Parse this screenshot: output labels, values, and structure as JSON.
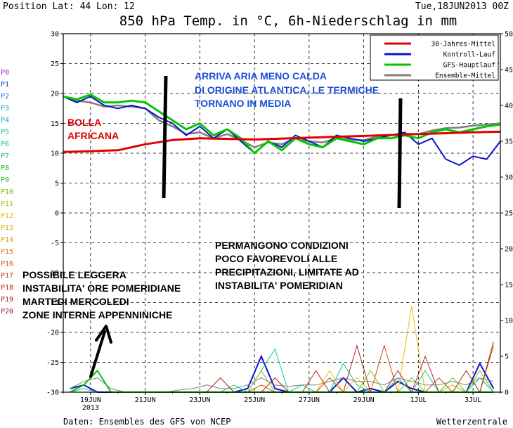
{
  "header": {
    "position": "Position  Lat: 44 Lon: 12",
    "date": "Tue,18JUN2013 00Z",
    "title": "850 hPa Temp. in °C, 6h-Niederschlag in mm"
  },
  "footer": {
    "source": "Daten: Ensembles des GFS von NCEP",
    "brand": "Wetterzentrale"
  },
  "chart_data": {
    "type": "line",
    "title": "850 hPa Temp. in °C, 6h-Niederschlag in mm",
    "x_start": "2013-06-18",
    "x_end": "2013-07-04",
    "x_tick_labels": [
      "19JUN",
      "21JUN",
      "23JUN",
      "25JUN",
      "27JUN",
      "29JUN",
      "1JUL",
      "3JUL"
    ],
    "x_tick_dates": [
      "2013-06-19",
      "2013-06-21",
      "2013-06-23",
      "2013-06-25",
      "2013-06-27",
      "2013-06-29",
      "2013-07-01",
      "2013-07-03"
    ],
    "x_sublabel": "2013",
    "y_left_ticks": [
      30,
      25,
      20,
      15,
      10,
      5,
      0,
      -5,
      -10,
      -15,
      -20,
      -25,
      -30
    ],
    "y_left_lim": [
      -30,
      30
    ],
    "y_right_ticks": [
      50,
      45,
      40,
      35,
      30,
      25,
      20,
      15,
      10,
      5,
      0
    ],
    "y_right_lim": [
      0,
      50
    ],
    "legend": {
      "position": "top-right",
      "entries": [
        {
          "label": "30-Jahres-Mittel",
          "color": "#e00000"
        },
        {
          "label": "Kontroll-Lauf",
          "color": "#1010d0"
        },
        {
          "label": "GFS-Hauptlauf",
          "color": "#00c800"
        },
        {
          "label": "Ensemble-Mittel",
          "color": "#808080"
        }
      ]
    },
    "members": {
      "labels": [
        "P0",
        "P1",
        "P2",
        "P3",
        "P4",
        "P5",
        "P6",
        "P7",
        "P8",
        "P9",
        "P10",
        "P11",
        "P12",
        "P13",
        "P14",
        "P15",
        "P16",
        "P17",
        "P18",
        "P19",
        "P20"
      ],
      "colors": [
        "#9018c8",
        "#1030d8",
        "#1070e0",
        "#10a0d8",
        "#10b0c0",
        "#10c0b0",
        "#10c890",
        "#10c060",
        "#10c020",
        "#30c010",
        "#70c810",
        "#b0c810",
        "#e0c010",
        "#e8a810",
        "#e89010",
        "#e07010",
        "#d05010",
        "#c83010",
        "#b82010",
        "#a81818",
        "#981820"
      ]
    },
    "series": [
      {
        "name": "30-Jahres-Mittel",
        "color": "#e00000",
        "x_days": [
          0,
          2,
          3,
          4,
          5,
          7,
          9,
          11,
          13,
          15,
          16
        ],
        "values": [
          10.2,
          10.5,
          11.5,
          12.2,
          12.5,
          12.3,
          12.6,
          12.9,
          13.2,
          13.5,
          13.6
        ]
      },
      {
        "name": "Kontroll-Lauf",
        "color": "#1010d0",
        "x_days": [
          0,
          0.5,
          1,
          1.5,
          2,
          2.5,
          3,
          3.5,
          4,
          4.5,
          5,
          5.5,
          6,
          6.5,
          7,
          7.5,
          8,
          8.5,
          9,
          9.5,
          10,
          10.5,
          11,
          11.5,
          12,
          12.5,
          13,
          13.5,
          14,
          14.5,
          15,
          15.5,
          16
        ],
        "values": [
          19.5,
          18.5,
          19.5,
          18,
          17.5,
          18,
          17.5,
          16,
          15,
          13,
          14.5,
          12.5,
          14,
          12,
          10,
          12,
          11,
          13,
          12,
          11,
          13,
          12.5,
          12,
          12.5,
          13,
          13.5,
          11.5,
          12.5,
          9,
          8,
          9.5,
          9,
          12
        ]
      },
      {
        "name": "GFS-Hauptlauf",
        "color": "#00c800",
        "x_days": [
          0,
          0.5,
          1,
          1.5,
          2,
          2.5,
          3,
          3.5,
          4,
          4.5,
          5,
          5.5,
          6,
          6.5,
          7,
          7.5,
          8,
          8.5,
          9,
          9.5,
          10,
          10.5,
          11,
          11.5,
          12,
          12.5,
          13,
          13.5,
          14,
          14.5,
          15,
          15.5,
          16
        ],
        "values": [
          19.5,
          19,
          19.8,
          18.5,
          18.5,
          18.8,
          18.5,
          17,
          15.5,
          14,
          15,
          13,
          14,
          12.5,
          10,
          12,
          10.5,
          12.5,
          11.5,
          11,
          12.5,
          12,
          11.5,
          12.5,
          12.5,
          13,
          12.5,
          13.5,
          14,
          13.5,
          14,
          14.5,
          14.8
        ]
      },
      {
        "name": "Ensemble-Mittel",
        "color": "#808080",
        "x_days": [
          0,
          0.5,
          1,
          1.5,
          2,
          2.5,
          3,
          3.5,
          4,
          4.5,
          5,
          5.5,
          6,
          6.5,
          7,
          7.5,
          8,
          8.5,
          9,
          9.5,
          10,
          10.5,
          11,
          11.5,
          12,
          12.5,
          13,
          13.5,
          14,
          14.5,
          15,
          15.5,
          16
        ],
        "values": [
          19.5,
          18.8,
          18.5,
          17.8,
          18,
          17.8,
          17.5,
          15.5,
          14.5,
          13.2,
          13.5,
          12.5,
          13.2,
          12.2,
          11,
          11.8,
          11.5,
          12.5,
          12,
          11.8,
          12.5,
          12.3,
          12.2,
          12.8,
          13,
          13.3,
          13.2,
          13.8,
          14.2,
          14.3,
          14.6,
          14.8,
          15
        ]
      }
    ],
    "precip_days": [
      0.25,
      0.75,
      1.25,
      1.75,
      2.25,
      2.75,
      3.25,
      3.75,
      4.25,
      4.75,
      5.25,
      5.75,
      6.25,
      6.75,
      7.25,
      7.75,
      8.25,
      8.75,
      9.25,
      9.75,
      10.25,
      10.75,
      11.25,
      11.75,
      12.25,
      12.75,
      13.25,
      13.75,
      14.25,
      14.75,
      15.25,
      15.75
    ],
    "precip_series": [
      {
        "name": "Kontroll-Lauf",
        "color": "#1010d0",
        "values": [
          0.5,
          1,
          0,
          0,
          0,
          0,
          0,
          0,
          0,
          0,
          0,
          0,
          0,
          0.5,
          5,
          0.5,
          0,
          0,
          0,
          0,
          2,
          0,
          0.5,
          0,
          1.5,
          0.5,
          0,
          0,
          0,
          0,
          4,
          0.5
        ]
      },
      {
        "name": "GFS-Hauptlauf",
        "color": "#00c800",
        "values": [
          0,
          1,
          3,
          0,
          0,
          0,
          0,
          0,
          0,
          0,
          0,
          0,
          0,
          0,
          0,
          0,
          0,
          0,
          0,
          0,
          0,
          0,
          0,
          0,
          0,
          0,
          0,
          0,
          0,
          0,
          0,
          0
        ]
      },
      {
        "name": "Ensemble-Mittel",
        "color": "#808080",
        "values": [
          0.5,
          1.5,
          2,
          0.5,
          0,
          0,
          0,
          0,
          0.3,
          0.5,
          1,
          0.5,
          0.5,
          1,
          2,
          1,
          0.8,
          1,
          1,
          1.5,
          2,
          1.5,
          1.5,
          1,
          2,
          1.5,
          1,
          1,
          1.5,
          1,
          2,
          1.5
        ]
      },
      {
        "name": "P6",
        "color": "#10c890",
        "values": [
          0,
          0.5,
          0,
          0,
          0,
          0,
          0,
          0,
          0,
          0,
          0,
          0,
          1,
          0,
          3,
          6,
          0,
          1,
          0,
          0,
          4,
          1,
          0,
          0,
          2,
          0,
          3,
          0,
          1,
          0,
          2,
          0
        ]
      },
      {
        "name": "P12",
        "color": "#e0c010",
        "values": [
          0,
          0,
          0,
          0,
          0,
          0,
          0,
          0,
          0,
          0,
          0,
          0,
          0,
          0,
          0,
          0,
          0,
          0,
          0,
          3,
          0,
          2,
          0,
          0,
          0,
          12,
          0,
          0,
          1,
          0,
          0,
          0
        ]
      },
      {
        "name": "P16",
        "color": "#d05010",
        "values": [
          0,
          0,
          0,
          0,
          0,
          0,
          0,
          0,
          0,
          0,
          0,
          0,
          0,
          0,
          1,
          0,
          0,
          0,
          0,
          2,
          0,
          0,
          0,
          6.5,
          0,
          0,
          0,
          2,
          0,
          0,
          0,
          6.5
        ]
      },
      {
        "name": "P18",
        "color": "#b82010",
        "values": [
          0,
          0,
          0,
          0,
          0,
          0,
          0,
          0,
          0,
          0,
          0,
          2,
          0,
          0,
          0,
          2,
          0,
          0,
          3,
          0,
          0,
          6.5,
          0,
          0,
          3,
          0,
          5,
          0,
          0,
          3,
          0,
          7
        ]
      },
      {
        "name": "P10",
        "color": "#70c810",
        "values": [
          0,
          0,
          0,
          0,
          0,
          0,
          0,
          0,
          0,
          0,
          0,
          0,
          0,
          0,
          3,
          0,
          0,
          0,
          0,
          0,
          0,
          0,
          3,
          0,
          0,
          2,
          0,
          0,
          2,
          0,
          3,
          0
        ]
      }
    ],
    "annotations": [
      {
        "text": "ARRIVA ARIA MENO CALDA",
        "color": "#1a4fd6"
      },
      {
        "text": "DI ORIGINE ATLANTICA, LE TERMICHE",
        "color": "#1a4fd6"
      },
      {
        "text": "TORNANO IN MEDIA",
        "color": "#1a4fd6"
      },
      {
        "text": "BOLLA",
        "color": "#e00000"
      },
      {
        "text": "AFRICANA",
        "color": "#e00000"
      },
      {
        "text": "PERMANGONO CONDIZIONI",
        "color": "#000000"
      },
      {
        "text": "POCO FAVOREVOLI ALLE",
        "color": "#000000"
      },
      {
        "text": "PRECIPITAZIONI, LIMITATE AD",
        "color": "#000000"
      },
      {
        "text": "INSTABILITA' POMERIDIAN",
        "color": "#000000"
      },
      {
        "text": "POSSIBILE LEGGERA",
        "color": "#000000"
      },
      {
        "text": "INSTABILITA' ORE POMERIDIANE",
        "color": "#000000"
      },
      {
        "text": "MARTEDI MERCOLEDI",
        "color": "#000000"
      },
      {
        "text": "ZONE INTERNE APPENNINICHE",
        "color": "#000000"
      }
    ]
  }
}
